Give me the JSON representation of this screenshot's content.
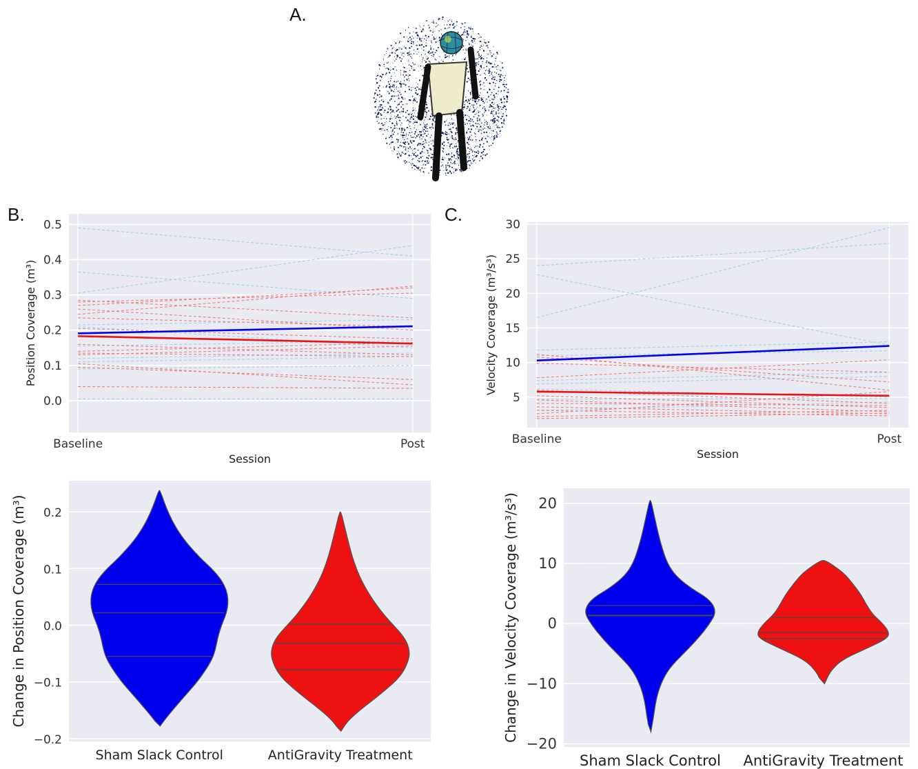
{
  "panels": {
    "a": "A.",
    "b": "B.",
    "c": "C."
  },
  "colors": {
    "control": "#0000ee",
    "treatment": "#ee1111",
    "control_light": "#9fd3e8",
    "treatment_light": "#f08080",
    "plot_bg": "#eaeaf2"
  },
  "illustration": {
    "name": "body-point-cloud",
    "description_icon": "stick-figure-icon"
  },
  "chart_data": [
    {
      "id": "position",
      "type": "line",
      "xlabel": "Session",
      "ylabel": "Position Coverage (m³)",
      "categories": [
        "Baseline",
        "Post"
      ],
      "ylim": [
        -0.09,
        0.53
      ],
      "yticks": [
        "0.0",
        "0.1",
        "0.2",
        "0.3",
        "0.4",
        "0.5"
      ],
      "ytick_values": [
        0,
        0.1,
        0.2,
        0.3,
        0.4,
        0.5
      ],
      "grid": true,
      "mean_series": [
        {
          "group": "control",
          "values": [
            0.191,
            0.211
          ]
        },
        {
          "group": "treatment",
          "values": [
            0.183,
            0.162
          ]
        }
      ],
      "individual_series": [
        {
          "group": "control",
          "values": [
            0.49,
            0.41
          ]
        },
        {
          "group": "control",
          "values": [
            0.305,
            0.44
          ]
        },
        {
          "group": "control",
          "values": [
            0.365,
            0.29
          ]
        },
        {
          "group": "control",
          "values": [
            0.215,
            0.23
          ]
        },
        {
          "group": "control",
          "values": [
            0.21,
            0.15
          ]
        },
        {
          "group": "control",
          "values": [
            0.155,
            0.17
          ]
        },
        {
          "group": "control",
          "values": [
            0.12,
            0.135
          ]
        },
        {
          "group": "control",
          "values": [
            0.11,
            0.125
          ]
        },
        {
          "group": "control",
          "values": [
            0.09,
            0.1
          ]
        },
        {
          "group": "control",
          "values": [
            0.005,
            0.005
          ]
        },
        {
          "group": "treatment",
          "values": [
            0.285,
            0.235
          ]
        },
        {
          "group": "treatment",
          "values": [
            0.28,
            0.305
          ]
        },
        {
          "group": "treatment",
          "values": [
            0.27,
            0.32
          ]
        },
        {
          "group": "treatment",
          "values": [
            0.26,
            0.2
          ]
        },
        {
          "group": "treatment",
          "values": [
            0.245,
            0.325
          ]
        },
        {
          "group": "treatment",
          "values": [
            0.235,
            0.21
          ]
        },
        {
          "group": "treatment",
          "values": [
            0.205,
            0.175
          ]
        },
        {
          "group": "treatment",
          "values": [
            0.16,
            0.13
          ]
        },
        {
          "group": "treatment",
          "values": [
            0.14,
            0.165
          ]
        },
        {
          "group": "treatment",
          "values": [
            0.135,
            0.125
          ]
        },
        {
          "group": "treatment",
          "values": [
            0.13,
            0.155
          ]
        },
        {
          "group": "treatment",
          "values": [
            0.105,
            0.045
          ]
        },
        {
          "group": "treatment",
          "values": [
            0.095,
            0.06
          ]
        },
        {
          "group": "treatment",
          "values": [
            0.04,
            0.035
          ]
        }
      ]
    },
    {
      "id": "velocity",
      "type": "line",
      "xlabel": "Session",
      "ylabel": "Velocity Coverage (m³/s³)",
      "categories": [
        "Baseline",
        "Post"
      ],
      "ylim": [
        0.6,
        30.3
      ],
      "yticks": [
        "5",
        "10",
        "15",
        "20",
        "25",
        "30"
      ],
      "ytick_values": [
        5,
        10,
        15,
        20,
        25,
        30
      ],
      "grid": true,
      "mean_series": [
        {
          "group": "control",
          "values": [
            10.3,
            12.4
          ]
        },
        {
          "group": "treatment",
          "values": [
            5.8,
            5.2
          ]
        }
      ],
      "individual_series": [
        {
          "group": "control",
          "values": [
            24.0,
            27.2
          ]
        },
        {
          "group": "control",
          "values": [
            16.5,
            29.5
          ]
        },
        {
          "group": "control",
          "values": [
            22.7,
            12.5
          ]
        },
        {
          "group": "control",
          "values": [
            11.8,
            13.0
          ]
        },
        {
          "group": "control",
          "values": [
            11.0,
            11.7
          ]
        },
        {
          "group": "control",
          "values": [
            7.4,
            8.6
          ]
        },
        {
          "group": "control",
          "values": [
            6.9,
            8.0
          ]
        },
        {
          "group": "control",
          "values": [
            6.2,
            5.0
          ]
        },
        {
          "group": "control",
          "values": [
            4.7,
            4.8
          ]
        },
        {
          "group": "control",
          "values": [
            3.1,
            4.3
          ]
        },
        {
          "group": "treatment",
          "values": [
            11.2,
            6.0
          ]
        },
        {
          "group": "treatment",
          "values": [
            10.8,
            7.2
          ]
        },
        {
          "group": "treatment",
          "values": [
            9.9,
            8.6
          ]
        },
        {
          "group": "treatment",
          "values": [
            7.8,
            10.4
          ]
        },
        {
          "group": "treatment",
          "values": [
            6.0,
            4.1
          ]
        },
        {
          "group": "treatment",
          "values": [
            5.2,
            3.5
          ]
        },
        {
          "group": "treatment",
          "values": [
            4.6,
            2.9
          ]
        },
        {
          "group": "treatment",
          "values": [
            4.1,
            3.8
          ]
        },
        {
          "group": "treatment",
          "values": [
            3.6,
            2.6
          ]
        },
        {
          "group": "treatment",
          "values": [
            3.1,
            2.3
          ]
        },
        {
          "group": "treatment",
          "values": [
            2.6,
            5.8
          ]
        },
        {
          "group": "treatment",
          "values": [
            2.2,
            3.1
          ]
        },
        {
          "group": "treatment",
          "values": [
            1.9,
            2.7
          ]
        }
      ]
    },
    {
      "id": "position-change",
      "type": "violin",
      "xlabel": "",
      "ylabel": "Change in Position Coverage (m³)",
      "categories": [
        "Sham Slack Control",
        "AntiGravity Treatment"
      ],
      "ylim": [
        -0.205,
        0.255
      ],
      "yticks": [
        "0.2",
        "0.1",
        "0.0",
        "−0.1",
        "−0.2"
      ],
      "ytick_values": [
        0.2,
        0.1,
        0.0,
        -0.1,
        -0.2
      ],
      "grid": true,
      "violins": [
        {
          "group": "control",
          "min": -0.178,
          "max": 0.238,
          "quartiles": [
            -0.055,
            0.022,
            0.072
          ],
          "profile": [
            [
              -0.178,
              0.01
            ],
            [
              -0.16,
              0.12
            ],
            [
              -0.13,
              0.33
            ],
            [
              -0.1,
              0.55
            ],
            [
              -0.07,
              0.72
            ],
            [
              -0.05,
              0.8
            ],
            [
              -0.02,
              0.85
            ],
            [
              0.0,
              0.9
            ],
            [
              0.02,
              0.97
            ],
            [
              0.04,
              1.0
            ],
            [
              0.06,
              0.98
            ],
            [
              0.08,
              0.9
            ],
            [
              0.1,
              0.76
            ],
            [
              0.12,
              0.58
            ],
            [
              0.15,
              0.36
            ],
            [
              0.18,
              0.2
            ],
            [
              0.21,
              0.09
            ],
            [
              0.238,
              0.01
            ]
          ]
        },
        {
          "group": "treatment",
          "min": -0.187,
          "max": 0.2,
          "quartiles": [
            -0.078,
            -0.032,
            0.002
          ],
          "profile": [
            [
              -0.187,
              0.01
            ],
            [
              -0.17,
              0.1
            ],
            [
              -0.15,
              0.28
            ],
            [
              -0.12,
              0.6
            ],
            [
              -0.09,
              0.88
            ],
            [
              -0.06,
              1.0
            ],
            [
              -0.04,
              1.0
            ],
            [
              -0.02,
              0.92
            ],
            [
              0.0,
              0.77
            ],
            [
              0.02,
              0.62
            ],
            [
              0.05,
              0.44
            ],
            [
              0.08,
              0.3
            ],
            [
              0.11,
              0.2
            ],
            [
              0.14,
              0.13
            ],
            [
              0.17,
              0.07
            ],
            [
              0.2,
              0.01
            ]
          ]
        }
      ]
    },
    {
      "id": "velocity-change",
      "type": "violin",
      "xlabel": "",
      "ylabel": "Change in Velocity Coverage (m³/s³)",
      "categories": [
        "Sham Slack Control",
        "AntiGravity Treatment"
      ],
      "ylim": [
        -20.5,
        22.5
      ],
      "yticks": [
        "20",
        "10",
        "0",
        "−10",
        "−20"
      ],
      "ytick_values": [
        20,
        10,
        0,
        -10,
        -20
      ],
      "grid": true,
      "violins": [
        {
          "group": "control",
          "min": -18.0,
          "max": 20.5,
          "quartiles": [
            1.3,
            1.4,
            3.0
          ],
          "profile": [
            [
              -18.0,
              0.01
            ],
            [
              -15.5,
              0.05
            ],
            [
              -12.5,
              0.09
            ],
            [
              -10.0,
              0.16
            ],
            [
              -7.5,
              0.28
            ],
            [
              -5.0,
              0.5
            ],
            [
              -2.5,
              0.72
            ],
            [
              0.0,
              0.9
            ],
            [
              2.0,
              1.0
            ],
            [
              4.0,
              0.9
            ],
            [
              6.0,
              0.6
            ],
            [
              8.0,
              0.38
            ],
            [
              10.0,
              0.26
            ],
            [
              12.5,
              0.18
            ],
            [
              15.0,
              0.12
            ],
            [
              17.5,
              0.07
            ],
            [
              20.5,
              0.01
            ]
          ]
        },
        {
          "group": "treatment",
          "min": -10.0,
          "max": 10.5,
          "quartiles": [
            -2.5,
            -1.5,
            1.0
          ],
          "profile": [
            [
              -10.0,
              0.02
            ],
            [
              -8.0,
              0.1
            ],
            [
              -6.0,
              0.28
            ],
            [
              -4.0,
              0.68
            ],
            [
              -2.5,
              0.96
            ],
            [
              -1.5,
              1.0
            ],
            [
              0.0,
              0.9
            ],
            [
              1.5,
              0.75
            ],
            [
              3.0,
              0.66
            ],
            [
              5.0,
              0.56
            ],
            [
              7.0,
              0.42
            ],
            [
              8.5,
              0.3
            ],
            [
              10.0,
              0.11
            ],
            [
              10.5,
              0.02
            ]
          ]
        }
      ]
    }
  ]
}
